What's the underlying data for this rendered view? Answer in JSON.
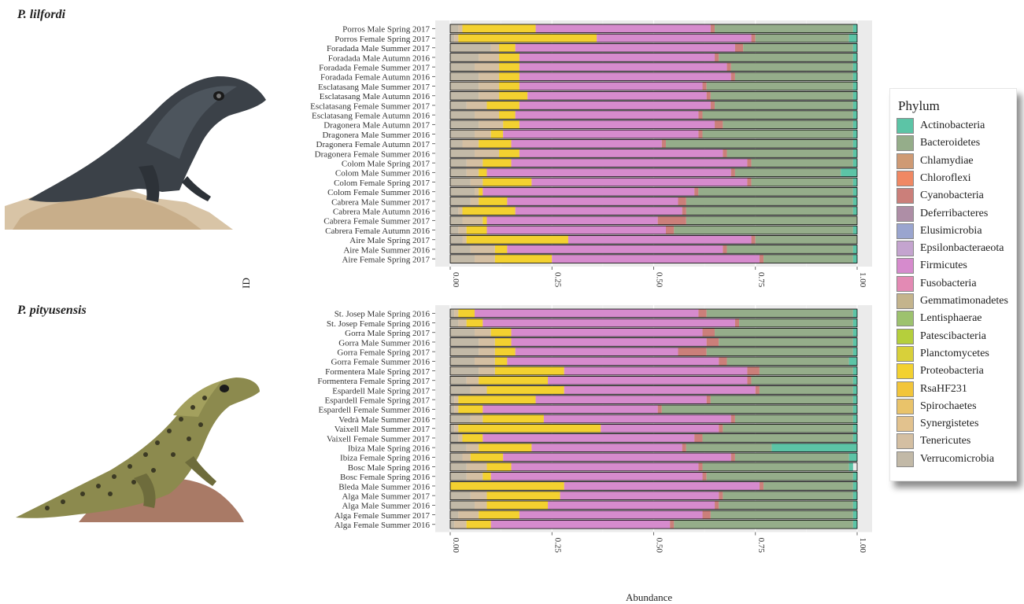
{
  "species": [
    "P. lilfordi",
    "P. pityusensis"
  ],
  "legend_title": "Phylum",
  "phyla": [
    {
      "name": "Actinobacteria",
      "color": "#5cc4a6"
    },
    {
      "name": "Bacteroidetes",
      "color": "#95ad8a"
    },
    {
      "name": "Chlamydiae",
      "color": "#cf9a74"
    },
    {
      "name": "Chloroflexi",
      "color": "#f08863"
    },
    {
      "name": "Cyanobacteria",
      "color": "#cb7f7a"
    },
    {
      "name": "Deferribacteres",
      "color": "#ae8ea6"
    },
    {
      "name": "Elusimicrobia",
      "color": "#9aa5cf"
    },
    {
      "name": "Epsilonbacteraeota",
      "color": "#c4a4cf"
    },
    {
      "name": "Firmicutes",
      "color": "#d68bcd"
    },
    {
      "name": "Fusobacteria",
      "color": "#e38ab4"
    },
    {
      "name": "Gemmatimonadetes",
      "color": "#c4b48c"
    },
    {
      "name": "Lentisphaerae",
      "color": "#9dc26e"
    },
    {
      "name": "Patescibacteria",
      "color": "#b5cf3c"
    },
    {
      "name": "Planctomycetes",
      "color": "#d8d03a"
    },
    {
      "name": "Proteobacteria",
      "color": "#f3d130"
    },
    {
      "name": "RsaHF231",
      "color": "#f2c53a"
    },
    {
      "name": "Spirochaetes",
      "color": "#e9c36a"
    },
    {
      "name": "Synergistetes",
      "color": "#e2c28e"
    },
    {
      "name": "Tenericutes",
      "color": "#d4bfa2"
    },
    {
      "name": "Verrucomicrobia",
      "color": "#c2b9a7"
    }
  ],
  "axis_labels": {
    "x": "Abundance",
    "y": "ID"
  },
  "chart_data": [
    {
      "type": "bar",
      "orientation": "horizontal",
      "stacked": true,
      "xlim": [
        0,
        1
      ],
      "xticks": [
        "0.00",
        "0.25",
        "0.50",
        "0.75",
        "1.00"
      ],
      "categories": [
        "Porros  Male Spring 2017",
        "Porros Female Spring 2017",
        "Foradada Male Summer 2017",
        "Foradada Male Autumn 2016",
        "Foradada Female Summer 2017",
        "Foradada Female Autumn 2016",
        "Esclatasang Male Summer 2017",
        "Esclatasang Male Autumn 2016",
        "Esclatasang Female Summer 2017",
        "Esclatasang Female Autumn 2016",
        "Dragonera Male Autumn 2017",
        "Dragonera Male Summer 2016",
        "Dragonera Female Autumn 2017",
        "Dragonera Female Summer 2016",
        "Colom Male Spring 2017",
        "Colom Male Summer 2016",
        "Colom Female Spring 2017",
        "Colom Female Summer 2016",
        "Cabrera Male Summer 2017",
        "Cabrera Male Autumn 2016",
        "Cabrera Female Summer 2017",
        "Cabrera Female Autumn 2016",
        "Aire Male Spring 2017",
        "Aire Male Summer 2016",
        "Aire Female Spring 2017"
      ],
      "series": [
        {
          "name": "Verrucomicrobia",
          "values": [
            0.02,
            0.01,
            0.1,
            0.07,
            0.06,
            0.07,
            0.07,
            0.07,
            0.04,
            0.06,
            0.07,
            0.06,
            0.03,
            0.06,
            0.04,
            0.04,
            0.05,
            0.06,
            0.05,
            0.02,
            0.03,
            0.02,
            0.03,
            0.05,
            0.06
          ]
        },
        {
          "name": "Tenericutes",
          "values": [
            0.01,
            0.01,
            0.02,
            0.05,
            0.06,
            0.05,
            0.05,
            0.05,
            0.05,
            0.06,
            0.06,
            0.04,
            0.04,
            0.06,
            0.04,
            0.03,
            0.03,
            0.01,
            0.02,
            0.01,
            0.05,
            0.02,
            0.01,
            0.06,
            0.05
          ]
        },
        {
          "name": "Proteobacteria",
          "values": [
            0.18,
            0.34,
            0.04,
            0.05,
            0.05,
            0.05,
            0.05,
            0.07,
            0.08,
            0.04,
            0.04,
            0.03,
            0.08,
            0.05,
            0.07,
            0.02,
            0.12,
            0.01,
            0.07,
            0.13,
            0.01,
            0.05,
            0.25,
            0.03,
            0.14
          ]
        },
        {
          "name": "Firmicutes",
          "values": [
            0.43,
            0.38,
            0.54,
            0.48,
            0.51,
            0.52,
            0.45,
            0.44,
            0.47,
            0.45,
            0.48,
            0.48,
            0.37,
            0.5,
            0.58,
            0.6,
            0.53,
            0.52,
            0.42,
            0.41,
            0.42,
            0.44,
            0.45,
            0.53,
            0.51
          ]
        },
        {
          "name": "Cyanobacteria",
          "values": [
            0.01,
            0.01,
            0.02,
            0.01,
            0.01,
            0.01,
            0.01,
            0.01,
            0.01,
            0.01,
            0.02,
            0.01,
            0.01,
            0.01,
            0.01,
            0.01,
            0.01,
            0.01,
            0.02,
            0.01,
            0.07,
            0.02,
            0.01,
            0.01,
            0.01
          ]
        },
        {
          "name": "Bacteroidetes",
          "values": [
            0.34,
            0.23,
            0.27,
            0.33,
            0.3,
            0.29,
            0.36,
            0.35,
            0.34,
            0.37,
            0.32,
            0.37,
            0.46,
            0.31,
            0.25,
            0.26,
            0.25,
            0.38,
            0.41,
            0.41,
            0.42,
            0.44,
            0.25,
            0.31,
            0.22
          ]
        },
        {
          "name": "Actinobacteria",
          "values": [
            0.01,
            0.02,
            0.01,
            0.01,
            0.01,
            0.01,
            0.01,
            0.01,
            0.01,
            0.01,
            0.01,
            0.01,
            0.01,
            0.01,
            0.01,
            0.04,
            0.01,
            0.01,
            0.01,
            0.01,
            0.0,
            0.01,
            0.0,
            0.01,
            0.01
          ]
        }
      ]
    },
    {
      "type": "bar",
      "orientation": "horizontal",
      "stacked": true,
      "xlim": [
        0,
        1
      ],
      "xticks": [
        "0.00",
        "0.25",
        "0.50",
        "0.75",
        "1.00"
      ],
      "categories": [
        "St. Josep Male Spring 2016",
        "St. Josep Female Spring 2016",
        "Gorra Male Spring 2017",
        "Gorra Male Summer 2016",
        "Gorra Female Spring 2017",
        "Gorra Female Summer 2016",
        "Formentera Male Spring 2017",
        "Formentera Female Spring 2017",
        "Espardell Male Spring 2017",
        "Espardell Female Spring 2017",
        "Espardell Female Summer 2016",
        "Vedrà Male Summer 2016",
        "Vaixell Male Summer 2017",
        "Vaixell Female Summer 2017",
        "Ibiza Male Spring 2016",
        "Ibiza Female Spring 2016",
        "Bosc Male Spring 2016",
        "Bosc Female Spring 2016",
        "Bleda Male Summer 2016",
        "Alga Male Summer 2017",
        "Alga Male Summer 2016",
        "Alga Female Summer 2017",
        "Alga Female Summer 2016"
      ],
      "series": [
        {
          "name": "Verrucomicrobia",
          "values": [
            0.01,
            0.02,
            0.06,
            0.07,
            0.07,
            0.06,
            0.07,
            0.04,
            0.05,
            0.01,
            0.01,
            0.05,
            0.01,
            0.02,
            0.04,
            0.03,
            0.04,
            0.04,
            0.0,
            0.05,
            0.06,
            0.02,
            0.01
          ]
        },
        {
          "name": "Tenericutes",
          "values": [
            0.01,
            0.02,
            0.04,
            0.04,
            0.04,
            0.05,
            0.04,
            0.03,
            0.04,
            0.01,
            0.01,
            0.03,
            0.01,
            0.01,
            0.03,
            0.02,
            0.05,
            0.04,
            0.0,
            0.04,
            0.03,
            0.05,
            0.03
          ]
        },
        {
          "name": "Proteobacteria",
          "values": [
            0.04,
            0.04,
            0.05,
            0.04,
            0.05,
            0.03,
            0.17,
            0.17,
            0.19,
            0.19,
            0.06,
            0.15,
            0.35,
            0.05,
            0.13,
            0.08,
            0.06,
            0.02,
            0.28,
            0.18,
            0.15,
            0.1,
            0.06
          ]
        },
        {
          "name": "Firmicutes",
          "values": [
            0.55,
            0.62,
            0.47,
            0.48,
            0.4,
            0.52,
            0.45,
            0.49,
            0.47,
            0.42,
            0.43,
            0.46,
            0.29,
            0.52,
            0.37,
            0.56,
            0.46,
            0.52,
            0.48,
            0.39,
            0.41,
            0.45,
            0.44
          ]
        },
        {
          "name": "Cyanobacteria",
          "values": [
            0.02,
            0.01,
            0.03,
            0.03,
            0.07,
            0.02,
            0.03,
            0.01,
            0.01,
            0.01,
            0.01,
            0.01,
            0.01,
            0.02,
            0.01,
            0.01,
            0.01,
            0.01,
            0.01,
            0.01,
            0.01,
            0.02,
            0.01
          ]
        },
        {
          "name": "Bacteroidetes",
          "values": [
            0.36,
            0.28,
            0.34,
            0.33,
            0.36,
            0.3,
            0.23,
            0.25,
            0.23,
            0.35,
            0.47,
            0.29,
            0.32,
            0.37,
            0.21,
            0.28,
            0.36,
            0.36,
            0.22,
            0.32,
            0.33,
            0.35,
            0.44
          ]
        },
        {
          "name": "Actinobacteria",
          "values": [
            0.01,
            0.01,
            0.01,
            0.01,
            0.01,
            0.02,
            0.01,
            0.01,
            0.01,
            0.01,
            0.01,
            0.01,
            0.01,
            0.01,
            0.21,
            0.02,
            0.01,
            0.01,
            0.01,
            0.01,
            0.01,
            0.01,
            0.01
          ]
        }
      ]
    }
  ]
}
